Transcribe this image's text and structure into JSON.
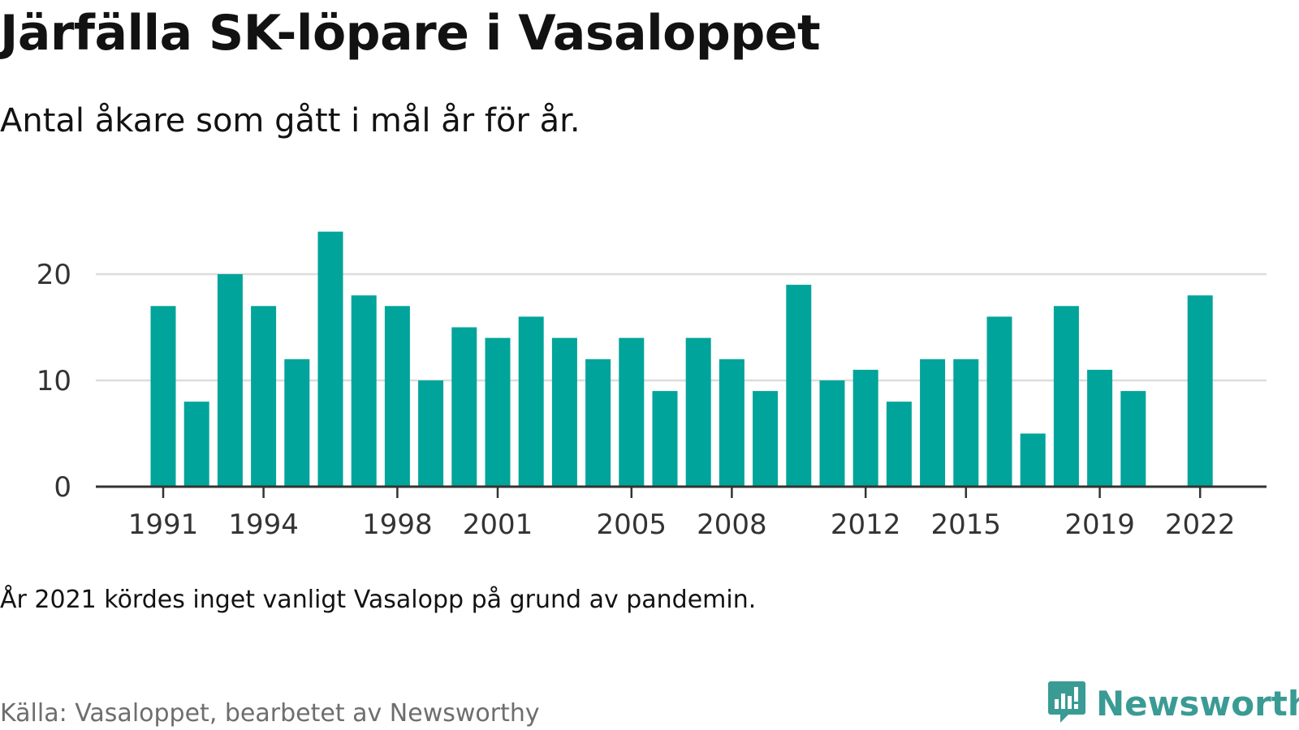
{
  "chart_data": {
    "type": "bar",
    "title": "Järfälla SK-löpare i Vasaloppet",
    "subtitle": "Antal åkare som gått i mål år för år.",
    "x": [
      1991,
      1992,
      1993,
      1994,
      1995,
      1996,
      1997,
      1998,
      1999,
      2000,
      2001,
      2002,
      2003,
      2004,
      2005,
      2006,
      2007,
      2008,
      2009,
      2010,
      2011,
      2012,
      2013,
      2014,
      2015,
      2016,
      2017,
      2018,
      2019,
      2020,
      2021,
      2022
    ],
    "values": [
      17,
      8,
      20,
      17,
      12,
      24,
      18,
      17,
      10,
      15,
      14,
      16,
      14,
      12,
      14,
      9,
      14,
      12,
      9,
      19,
      10,
      11,
      8,
      12,
      12,
      16,
      5,
      17,
      11,
      9,
      null,
      18
    ],
    "x_tick_labels": [
      "1991",
      "1994",
      "1998",
      "2001",
      "2005",
      "2008",
      "2012",
      "2015",
      "2019",
      "2022"
    ],
    "y_ticks": [
      "0",
      "10",
      "20"
    ],
    "ylim": [
      0,
      25
    ],
    "grid": true,
    "bar_color": "#00a49a"
  },
  "note": "År 2021 kördes inget vanligt Vasalopp på grund av pandemin.",
  "source": "Källa: Vasaloppet, bearbetet av Newsworthy",
  "brand": {
    "name": "Newsworthy",
    "icon": "newsworthy-logo-icon",
    "color": "#3a9b94"
  }
}
